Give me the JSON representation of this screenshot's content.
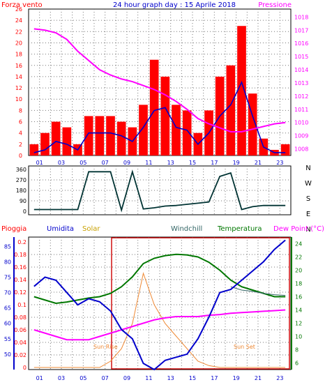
{
  "header": {
    "left_label": "Forza vento",
    "title": "24 hour graph day : 15 Aprile 2018",
    "right_label": "Pressione"
  },
  "colors": {
    "wind_bar": "#ff0000",
    "wind_avg": "#0000cc",
    "pressure": "#ff00ff",
    "direction": "#003333",
    "pioggia": "#ff0000",
    "umidita": "#0000cc",
    "solar": "#ee8833",
    "windchill": "#336666",
    "temperatura": "#007700",
    "dewpoint": "#ff00ff"
  },
  "chart_data": [
    {
      "type": "bar",
      "name": "wind",
      "x_ticks": [
        "01",
        "03",
        "05",
        "07",
        "09",
        "11",
        "13",
        "15",
        "17",
        "19",
        "21",
        "23"
      ],
      "y_left_ticks": [
        "0",
        "2",
        "4",
        "6",
        "8",
        "10",
        "12",
        "14",
        "16",
        "18",
        "20",
        "22",
        "24",
        "26"
      ],
      "y_right_ticks": [
        "1008",
        "1009",
        "1010",
        "1011",
        "1012",
        "1013",
        "1014",
        "1015",
        "1016",
        "1017",
        "1018"
      ],
      "ylim_left": [
        0,
        26
      ],
      "ylim_right": [
        1007.5,
        1018.6
      ],
      "gust_hourly": [
        2,
        4,
        6,
        5,
        2,
        7,
        7,
        7,
        6,
        5,
        9,
        17,
        14,
        9,
        8,
        4,
        8,
        14,
        16,
        23,
        11,
        3,
        1,
        2
      ],
      "avg_hourly": [
        0.5,
        1,
        2.5,
        2,
        1,
        4,
        4,
        4,
        3.5,
        2.5,
        5,
        8,
        8.5,
        5,
        4.5,
        2,
        4,
        7,
        9,
        13,
        7,
        1.5,
        0.5,
        0.5
      ],
      "pressure_hourly": [
        1017.1,
        1017.0,
        1016.8,
        1016.3,
        1015.4,
        1014.7,
        1014.0,
        1013.6,
        1013.3,
        1013.1,
        1012.8,
        1012.5,
        1012.1,
        1011.6,
        1011.0,
        1010.3,
        1009.9,
        1009.6,
        1009.3,
        1009.3,
        1009.5,
        1009.7,
        1009.9,
        1010.0
      ]
    },
    {
      "type": "line",
      "name": "direction",
      "y_ticks": [
        "0",
        "90",
        "180",
        "270",
        "360"
      ],
      "y_labels_right": [
        "N",
        "W",
        "S",
        "E",
        "N"
      ],
      "ylim": [
        0,
        360
      ],
      "values_hourly": [
        15,
        15,
        15,
        15,
        15,
        340,
        340,
        340,
        10,
        340,
        20,
        30,
        45,
        50,
        60,
        70,
        80,
        300,
        330,
        15,
        40,
        50,
        50,
        50
      ]
    },
    {
      "type": "line",
      "name": "weather",
      "legend": [
        "Pioggia",
        "Umidita",
        "Solar",
        "Windchill",
        "Temperatura",
        "Dew Point (°C)"
      ],
      "y_left1_ticks": [
        "0",
        "0.02",
        "0.04",
        "0.06",
        "0.08",
        "0.1",
        "0.12",
        "0.14",
        "0.16",
        "0.18",
        "0.2"
      ],
      "y_left2_ticks": [
        "50",
        "55",
        "60",
        "65",
        "70",
        "75",
        "80",
        "85"
      ],
      "y_right_ticks": [
        "6",
        "8",
        "10",
        "12",
        "14",
        "16",
        "18",
        "20",
        "22",
        "24"
      ],
      "ylim_humidity": [
        45,
        88
      ],
      "ylim_temp": [
        5,
        25
      ],
      "annotations": {
        "sunrise": "Sun Rise",
        "sunset": "Sun Set"
      },
      "humidity_hourly": [
        72,
        75,
        74,
        70,
        66,
        68,
        67,
        64,
        58,
        55,
        47,
        45,
        48,
        49,
        50,
        55,
        62,
        70,
        71,
        74,
        77,
        80,
        84,
        87
      ],
      "temperature_hourly": [
        16,
        15.5,
        15,
        15.2,
        15.5,
        15.8,
        16,
        16.5,
        17.5,
        19,
        21,
        21.8,
        22.2,
        22.4,
        22.3,
        22,
        21.2,
        20,
        18.5,
        17.5,
        17,
        16.5,
        16,
        16
      ],
      "dewpoint_hourly": [
        11,
        10.5,
        10,
        9.5,
        9.5,
        9.5,
        10,
        10.5,
        11,
        11.5,
        12,
        12.5,
        12.8,
        13,
        13,
        13,
        13.2,
        13.3,
        13.5,
        13.6,
        13.7,
        13.8,
        13.9,
        14
      ],
      "solar_hourly": [
        0,
        0,
        0,
        0,
        0,
        0,
        0,
        0.01,
        0.03,
        0.07,
        0.15,
        0.1,
        0.07,
        0.05,
        0.03,
        0.01,
        0.003,
        0,
        0,
        0,
        0,
        0,
        0,
        0
      ],
      "windchill_hourly": [
        null,
        null,
        null,
        null,
        null,
        null,
        null,
        null,
        null,
        null,
        null,
        null,
        null,
        null,
        null,
        null,
        null,
        null,
        17.5,
        17,
        16.8,
        16.5,
        16.3,
        16.2
      ]
    }
  ]
}
